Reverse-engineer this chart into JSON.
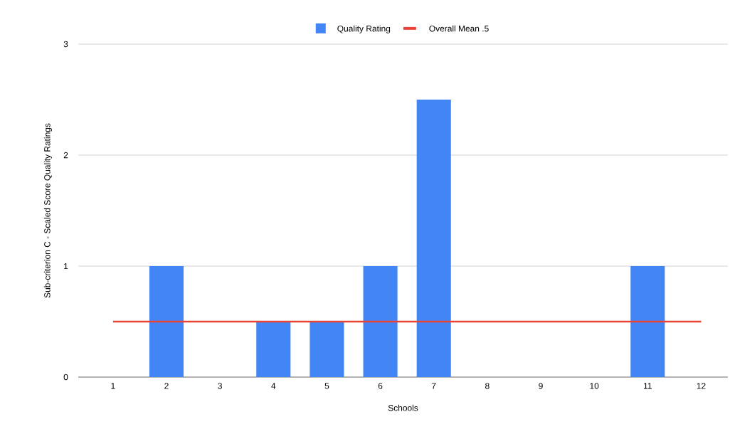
{
  "chart_data": {
    "type": "bar",
    "xlabel": "Schools",
    "ylabel": "Sub-criterion C - Scaled Score Quality Ratings",
    "categories": [
      "1",
      "2",
      "3",
      "4",
      "5",
      "6",
      "7",
      "8",
      "9",
      "10",
      "11",
      "12"
    ],
    "series": [
      {
        "name": "Quality Rating",
        "color": "#4285f4",
        "values": [
          0,
          1,
          0,
          0.5,
          0.5,
          1,
          2.5,
          0,
          0,
          0,
          1,
          0
        ]
      },
      {
        "name": "Overall Mean .5",
        "type": "line",
        "color": "#ea4335",
        "values": [
          0.5,
          0.5,
          0.5,
          0.5,
          0.5,
          0.5,
          0.5,
          0.5,
          0.5,
          0.5,
          0.5,
          0.5
        ]
      }
    ],
    "ylim": [
      0,
      3
    ],
    "yticks": [
      0,
      1,
      2,
      3
    ],
    "grid": "y",
    "legend": "top"
  }
}
